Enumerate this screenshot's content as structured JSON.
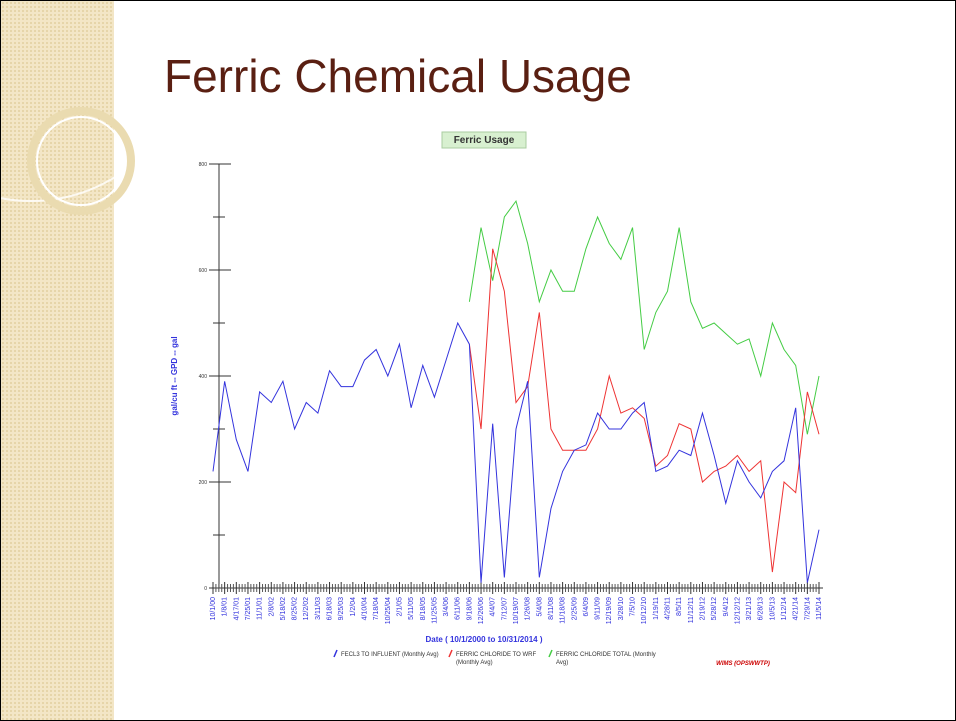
{
  "slide_title": "Ferric Chemical Usage",
  "chart_data": {
    "type": "line",
    "title": "Ferric Usage",
    "x_label": "Date ( 10/1/2000 to 10/31/2014 )",
    "y_label": "gal/cu ft -- GPD -- gal",
    "footnote": "WIMS (OPSWWTP)",
    "categories": [
      "10/1/00",
      "1/8/01",
      "4/17/01",
      "7/25/01",
      "11/1/01",
      "2/8/02",
      "5/18/02",
      "8/25/02",
      "12/2/02",
      "3/11/03",
      "6/18/03",
      "9/25/03",
      "1/2/04",
      "4/10/04",
      "7/18/04",
      "10/25/04",
      "2/1/05",
      "5/11/05",
      "8/18/05",
      "11/25/05",
      "3/4/06",
      "6/11/06",
      "9/18/06",
      "12/26/06",
      "4/4/07",
      "7/12/07",
      "10/19/07",
      "1/26/08",
      "5/4/08",
      "8/11/08",
      "11/18/08",
      "2/25/09",
      "6/4/09",
      "9/11/09",
      "12/19/09",
      "3/28/10",
      "7/5/10",
      "10/12/10",
      "1/19/11",
      "4/28/11",
      "8/5/11",
      "11/12/11",
      "2/19/12",
      "5/28/12",
      "9/4/12",
      "12/12/12",
      "3/21/13",
      "6/28/13",
      "10/5/13",
      "1/12/14",
      "4/21/14",
      "7/29/14",
      "11/5/14"
    ],
    "series": [
      {
        "name": "FECL3 TO INFLUENT (Monthly Avg)",
        "color": "#3333dd",
        "values": [
          220,
          390,
          280,
          220,
          370,
          350,
          390,
          300,
          350,
          330,
          410,
          380,
          380,
          430,
          450,
          400,
          460,
          340,
          420,
          360,
          430,
          500,
          460,
          10,
          310,
          20,
          300,
          390,
          20,
          150,
          220,
          260,
          270,
          330,
          300,
          300,
          330,
          350,
          220,
          230,
          260,
          250,
          330,
          250,
          160,
          240,
          200,
          170,
          220,
          240,
          340,
          10,
          110
        ]
      },
      {
        "name": "FERRIC CHLORIDE TO WRF (Monthly Avg)",
        "color": "#ee3333",
        "values": [
          null,
          null,
          null,
          null,
          null,
          null,
          null,
          null,
          null,
          null,
          null,
          null,
          null,
          null,
          null,
          null,
          null,
          null,
          null,
          null,
          null,
          null,
          460,
          300,
          640,
          560,
          350,
          380,
          520,
          300,
          260,
          260,
          260,
          300,
          400,
          330,
          340,
          320,
          230,
          250,
          310,
          300,
          200,
          220,
          230,
          250,
          220,
          240,
          30,
          200,
          180,
          370,
          290
        ]
      },
      {
        "name": "FERRIC CHLORIDE TOTAL (Monthly Avg)",
        "color": "#44cc44",
        "values": [
          null,
          null,
          null,
          null,
          null,
          null,
          null,
          null,
          null,
          null,
          null,
          null,
          null,
          null,
          null,
          null,
          null,
          null,
          null,
          null,
          null,
          null,
          540,
          680,
          580,
          700,
          730,
          650,
          540,
          600,
          560,
          560,
          640,
          700,
          650,
          620,
          680,
          450,
          520,
          560,
          680,
          540,
          490,
          500,
          480,
          460,
          470,
          400,
          500,
          450,
          420,
          290,
          400
        ]
      }
    ],
    "ylim": [
      0,
      800
    ],
    "yticks": [
      0,
      200,
      400,
      600,
      800
    ],
    "yminor": [
      100,
      300,
      500,
      700
    ]
  }
}
